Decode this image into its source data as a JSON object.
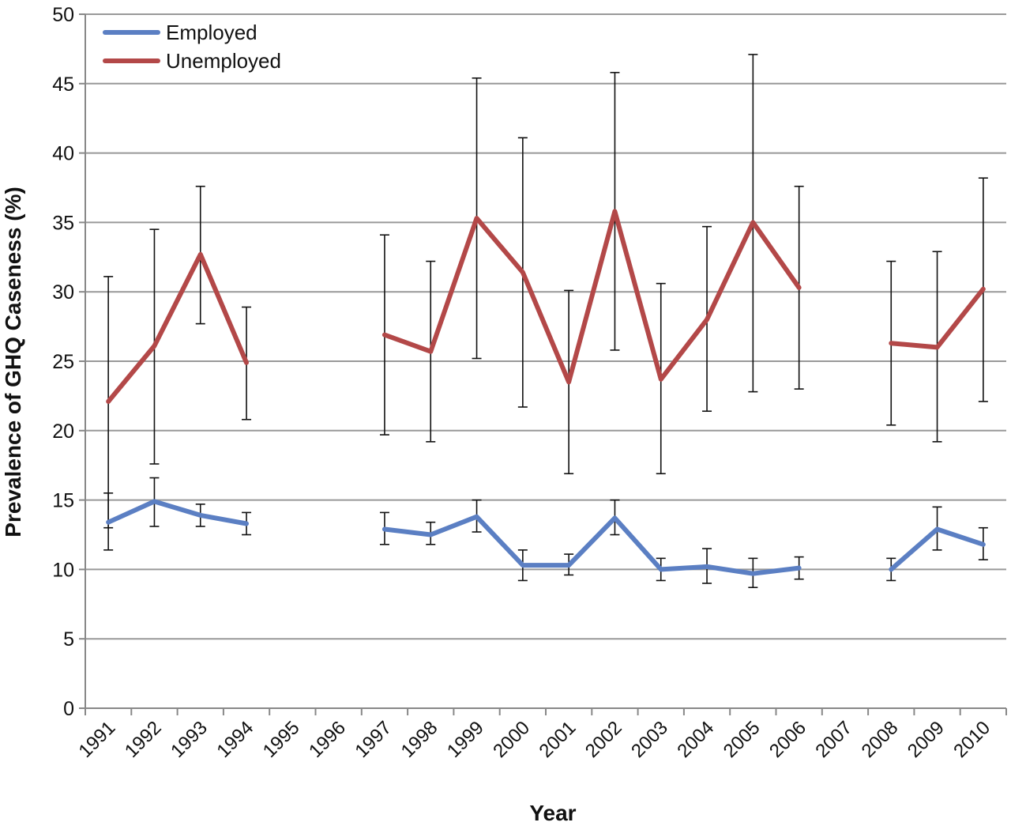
{
  "chart_data": {
    "type": "line",
    "title": "",
    "xlabel": "Year",
    "ylabel": "Prevalence of GHQ Caseness (%)",
    "ylim": [
      0,
      50
    ],
    "yticks": [
      0,
      5,
      10,
      15,
      20,
      25,
      30,
      35,
      40,
      45,
      50
    ],
    "grid": "horizontal",
    "legend_position": "top-left",
    "categories": [
      "1991",
      "1992",
      "1993",
      "1994",
      "1995",
      "1996",
      "1997",
      "1998",
      "1999",
      "2000",
      "2001",
      "2002",
      "2003",
      "2004",
      "2005",
      "2006",
      "2007",
      "2008",
      "2009",
      "2010"
    ],
    "series": [
      {
        "name": "Employed",
        "color": "#5b7fc3",
        "values": [
          13.4,
          14.9,
          13.9,
          13.3,
          null,
          null,
          12.9,
          12.5,
          13.8,
          10.3,
          10.3,
          13.7,
          10.0,
          10.2,
          9.7,
          10.1,
          null,
          10.0,
          12.9,
          11.8
        ],
        "lower": [
          11.4,
          13.1,
          13.1,
          12.5,
          null,
          null,
          11.8,
          11.8,
          12.7,
          9.2,
          9.6,
          12.5,
          9.2,
          9.0,
          8.7,
          9.3,
          null,
          9.2,
          11.4,
          10.7
        ],
        "upper": [
          15.5,
          16.6,
          14.7,
          14.1,
          null,
          null,
          14.1,
          13.4,
          15.0,
          11.4,
          11.1,
          15.0,
          10.8,
          11.5,
          10.8,
          10.9,
          null,
          10.8,
          14.5,
          13.0
        ]
      },
      {
        "name": "Unemployed",
        "color": "#b34848",
        "values": [
          22.1,
          26.1,
          32.7,
          24.9,
          null,
          null,
          26.9,
          25.7,
          35.3,
          31.4,
          23.5,
          35.8,
          23.7,
          28.0,
          35.0,
          30.3,
          null,
          26.3,
          26.0,
          30.2
        ],
        "lower": [
          13.0,
          17.6,
          27.7,
          20.8,
          null,
          null,
          19.7,
          19.2,
          25.2,
          21.7,
          16.9,
          25.8,
          16.9,
          21.4,
          22.8,
          23.0,
          null,
          20.4,
          19.2,
          22.1
        ],
        "upper": [
          31.1,
          34.5,
          37.6,
          28.9,
          null,
          null,
          34.1,
          32.2,
          45.4,
          41.1,
          30.1,
          45.8,
          30.6,
          34.7,
          47.1,
          37.6,
          null,
          32.2,
          32.9,
          38.2
        ]
      }
    ]
  }
}
